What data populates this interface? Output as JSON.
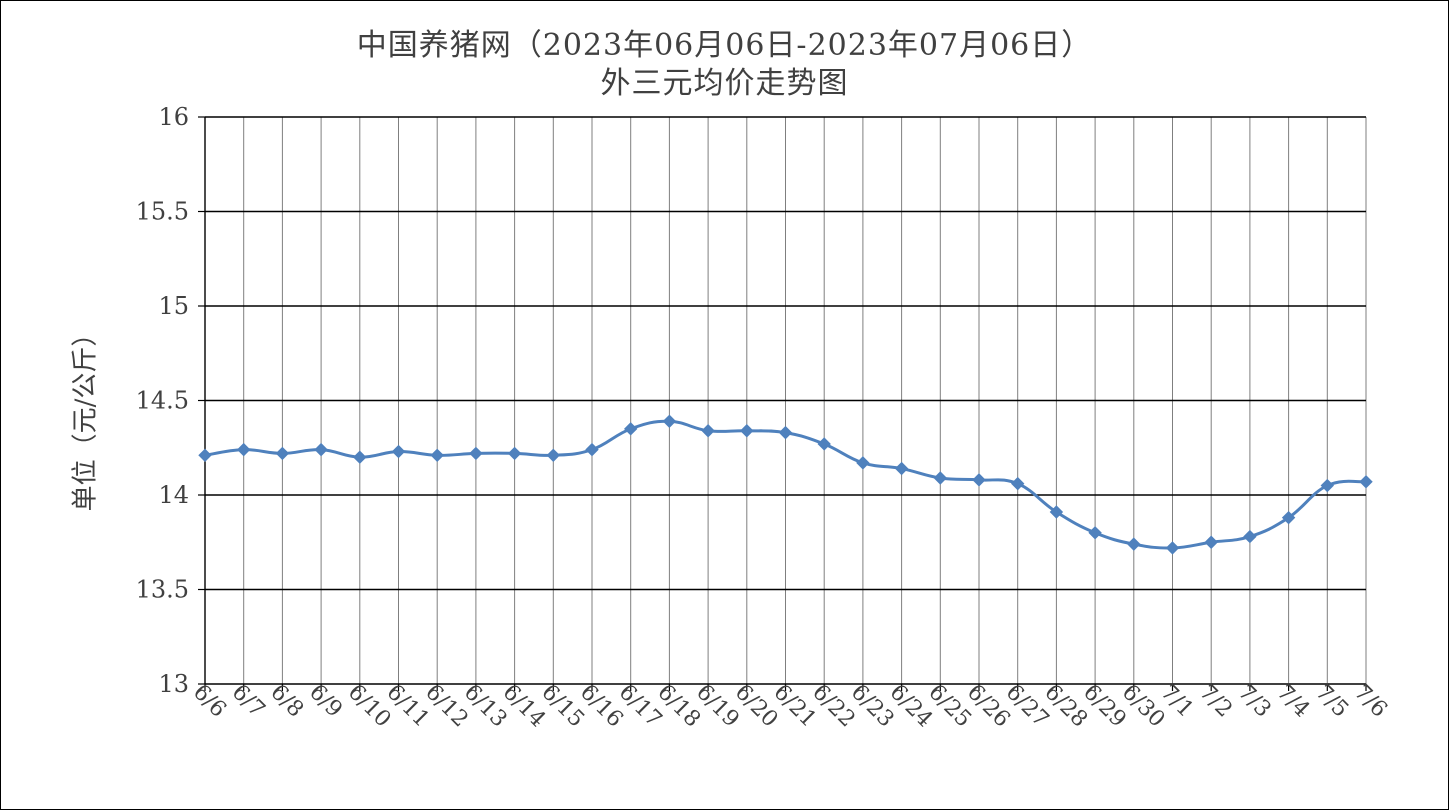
{
  "chart_data": {
    "type": "line",
    "title": "中国养猪网（2023年06月06日-2023年07月06日）",
    "subtitle": "外三元均价走势图",
    "ylabel": "单位（元/公斤）",
    "xlabel": "",
    "ylim": [
      13,
      16
    ],
    "yticks": [
      "13",
      "13.5",
      "14",
      "14.5",
      "15",
      "15.5",
      "16"
    ],
    "grid": true,
    "legend": "none",
    "colors": {
      "line": "#4f81bd",
      "hgrid": "#000000",
      "vgrid": "#7f7f7f"
    },
    "categories": [
      "6/6",
      "6/7",
      "6/8",
      "6/9",
      "6/10",
      "6/11",
      "6/12",
      "6/13",
      "6/14",
      "6/15",
      "6/16",
      "6/17",
      "6/18",
      "6/19",
      "6/20",
      "6/21",
      "6/22",
      "6/23",
      "6/24",
      "6/25",
      "6/26",
      "6/27",
      "6/28",
      "6/29",
      "6/30",
      "7/1",
      "7/2",
      "7/3",
      "7/4",
      "7/5",
      "7/6"
    ],
    "series": [
      {
        "values": [
          14.21,
          14.24,
          14.22,
          14.24,
          14.2,
          14.23,
          14.21,
          14.22,
          14.22,
          14.21,
          14.24,
          14.35,
          14.39,
          14.34,
          14.34,
          14.33,
          14.27,
          14.17,
          14.14,
          14.09,
          14.08,
          14.06,
          13.91,
          13.8,
          13.74,
          13.72,
          13.75,
          13.78,
          13.88,
          14.05,
          14.07
        ]
      }
    ]
  }
}
